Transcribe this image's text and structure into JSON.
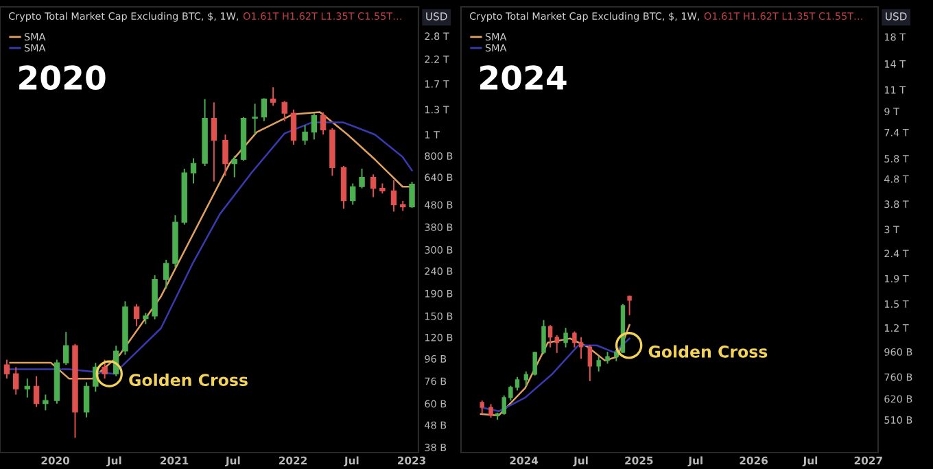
{
  "chart_data": [
    {
      "type": "candlestick",
      "title": "Crypto Total Market Cap Excluding BTC, $, 1W,",
      "subtitle": "O1.61T H1.62T L1.35T C1.55T…",
      "ylabel": "USD",
      "log": true,
      "legend": "top left",
      "annotations": [
        "2020",
        {
          "text": "Golden Cross",
          "x": "2020-06-15",
          "y": 82000000000.0
        }
      ],
      "xlim": [
        "2019-07-15",
        "2023-01-22"
      ],
      "xticks": [
        "2020",
        {
          "value": "2020-07",
          "label": "Jul"
        },
        "2021",
        {
          "value": "2021-07",
          "label": "Jul"
        },
        "2022",
        {
          "value": "2022-07",
          "label": "Jul"
        },
        "2023"
      ],
      "ylim": [
        36000000000.0,
        3800000000000.0
      ],
      "yticks": [
        {
          "value": 2800000000000.0,
          "label": "2.8 T"
        },
        {
          "value": 2200000000000.0,
          "label": "2.2 T"
        },
        {
          "value": 1700000000000.0,
          "label": "1.7 T"
        },
        {
          "value": 1300000000000.0,
          "label": "1.3 T"
        },
        {
          "value": 1000000000000.0,
          "label": "1 T"
        },
        {
          "value": 800000000000.0,
          "label": "800 B"
        },
        {
          "value": 640000000000.0,
          "label": "640 B"
        },
        {
          "value": 480000000000.0,
          "label": "480 B"
        },
        {
          "value": 380000000000.0,
          "label": "380 B"
        },
        {
          "value": 300000000000.0,
          "label": "300 B"
        },
        {
          "value": 240000000000.0,
          "label": "240 B"
        },
        {
          "value": 190000000000.0,
          "label": "190 B"
        },
        {
          "value": 150000000000.0,
          "label": "150 B"
        },
        {
          "value": 120000000000.0,
          "label": "120 B"
        },
        {
          "value": 96000000000.0,
          "label": "96 B"
        },
        {
          "value": 76000000000.0,
          "label": "76 B"
        },
        {
          "value": 60000000000.0,
          "label": "60 B"
        },
        {
          "value": 48000000000.0,
          "label": "48 B"
        },
        {
          "value": 38000000000.0,
          "label": "38 B"
        }
      ],
      "x": [
        "2019-08-05",
        "2019-09-02",
        "2019-10-07",
        "2019-11-04",
        "2019-12-02",
        "2020-01-06",
        "2020-02-03",
        "2020-03-02",
        "2020-04-06",
        "2020-05-04",
        "2020-06-01",
        "2020-07-06",
        "2020-08-03",
        "2020-09-07",
        "2020-10-05",
        "2020-11-02",
        "2020-12-07",
        "2021-01-04",
        "2021-02-01",
        "2021-03-01",
        "2021-04-05",
        "2021-05-03",
        "2021-06-07",
        "2021-07-05",
        "2021-08-02",
        "2021-09-06",
        "2021-10-04",
        "2021-11-01",
        "2021-12-06",
        "2022-01-03",
        "2022-02-07",
        "2022-03-07",
        "2022-04-04",
        "2022-05-02",
        "2022-06-06",
        "2022-07-04",
        "2022-08-01",
        "2022-09-05",
        "2022-10-03",
        "2022-11-07",
        "2022-12-05",
        "2023-01-02"
      ],
      "ohlc": [
        [
          90000000000.0,
          95000000000.0,
          78000000000.0,
          82000000000.0
        ],
        [
          82000000000.0,
          88000000000.0,
          66000000000.0,
          70000000000.0
        ],
        [
          70000000000.0,
          78000000000.0,
          64000000000.0,
          72000000000.0
        ],
        [
          72000000000.0,
          80000000000.0,
          58000000000.0,
          60000000000.0
        ],
        [
          60000000000.0,
          66000000000.0,
          56000000000.0,
          62000000000.0
        ],
        [
          62000000000.0,
          95000000000.0,
          60000000000.0,
          92000000000.0
        ],
        [
          92000000000.0,
          127000000000.0,
          90000000000.0,
          110000000000.0
        ],
        [
          110000000000.0,
          112000000000.0,
          42000000000.0,
          55000000000.0
        ],
        [
          55000000000.0,
          75000000000.0,
          52000000000.0,
          72000000000.0
        ],
        [
          72000000000.0,
          92000000000.0,
          68000000000.0,
          88000000000.0
        ],
        [
          88000000000.0,
          95000000000.0,
          78000000000.0,
          82000000000.0
        ],
        [
          82000000000.0,
          110000000000.0,
          80000000000.0,
          104000000000.0
        ],
        [
          104000000000.0,
          175000000000.0,
          100000000000.0,
          165000000000.0
        ],
        [
          165000000000.0,
          170000000000.0,
          135000000000.0,
          146000000000.0
        ],
        [
          146000000000.0,
          155000000000.0,
          138000000000.0,
          150000000000.0
        ],
        [
          150000000000.0,
          230000000000.0,
          145000000000.0,
          220000000000.0
        ],
        [
          220000000000.0,
          270000000000.0,
          200000000000.0,
          260000000000.0
        ],
        [
          260000000000.0,
          430000000000.0,
          250000000000.0,
          400000000000.0
        ],
        [
          400000000000.0,
          700000000000.0,
          390000000000.0,
          670000000000.0
        ],
        [
          670000000000.0,
          780000000000.0,
          600000000000.0,
          740000000000.0
        ],
        [
          740000000000.0,
          1450000000000.0,
          720000000000.0,
          1185000000000.0
        ],
        [
          1185000000000.0,
          1400000000000.0,
          612000000000.0,
          942000000000.0
        ],
        [
          942000000000.0,
          1000000000000.0,
          650000000000.0,
          738000000000.0
        ],
        [
          738000000000.0,
          800000000000.0,
          640000000000.0,
          771000000000.0
        ],
        [
          771000000000.0,
          1200000000000.0,
          760000000000.0,
          1185000000000.0
        ],
        [
          1185000000000.0,
          1380000000000.0,
          1000000000000.0,
          1200000000000.0
        ],
        [
          1200000000000.0,
          1460000000000.0,
          1150000000000.0,
          1450000000000.0
        ],
        [
          1450000000000.0,
          1640000000000.0,
          1350000000000.0,
          1400000000000.0
        ],
        [
          1400000000000.0,
          1420000000000.0,
          1150000000000.0,
          1250000000000.0
        ],
        [
          1250000000000.0,
          1300000000000.0,
          900000000000.0,
          942000000000.0
        ],
        [
          942000000000.0,
          1100000000000.0,
          900000000000.0,
          1026000000000.0
        ],
        [
          1026000000000.0,
          1250000000000.0,
          950000000000.0,
          1219000000000.0
        ],
        [
          1219000000000.0,
          1260000000000.0,
          1000000000000.0,
          1050000000000.0
        ],
        [
          1050000000000.0,
          1070000000000.0,
          650000000000.0,
          708000000000.0
        ],
        [
          708000000000.0,
          720000000000.0,
          460000000000.0,
          501000000000.0
        ],
        [
          501000000000.0,
          600000000000.0,
          480000000000.0,
          580000000000.0
        ],
        [
          580000000000.0,
          700000000000.0,
          570000000000.0,
          640000000000.0
        ],
        [
          640000000000.0,
          660000000000.0,
          520000000000.0,
          570000000000.0
        ],
        [
          570000000000.0,
          600000000000.0,
          540000000000.0,
          555000000000.0
        ],
        [
          555000000000.0,
          620000000000.0,
          447000000000.0,
          480000000000.0
        ],
        [
          480000000000.0,
          500000000000.0,
          450000000000.0,
          470000000000.0
        ],
        [
          470000000000.0,
          610000000000.0,
          465000000000.0,
          596000000000.0
        ]
      ],
      "series": [
        {
          "type": "line",
          "name": "SMA",
          "color": "#e0a060",
          "x": [
            "2019-08-15",
            "2019-12-19",
            "2020-02-12",
            "2020-04-24",
            "2020-07-17",
            "2020-11-21",
            "2021-04-09",
            "2021-06-20",
            "2021-09-12",
            "2021-12-31",
            "2022-03-25",
            "2022-06-18",
            "2022-09-10",
            "2022-12-04",
            "2023-01-02"
          ],
          "values": [
            92000000000.0,
            92000000000.0,
            78000000000.0,
            78000000000.0,
            100000000000.0,
            184000000000.0,
            460000000000.0,
            738000000000.0,
            1026000000000.0,
            1235000000000.0,
            1265000000000.0,
            1000000000000.0,
            771000000000.0,
            580000000000.0,
            580000000000.0
          ]
        },
        {
          "type": "line",
          "name": "SMA",
          "color": "#3a3ab0",
          "x": [
            "2019-08-15",
            "2020-02-12",
            "2020-06-30",
            "2020-11-21",
            "2021-02-26",
            "2021-05-21",
            "2021-08-26",
            "2021-12-06",
            "2022-02-28",
            "2022-06-05",
            "2022-09-10",
            "2022-12-04",
            "2023-01-02"
          ],
          "values": [
            86000000000.0,
            86000000000.0,
            82000000000.0,
            132000000000.0,
            259000000000.0,
            435000000000.0,
            669000000000.0,
            1012000000000.0,
            1135000000000.0,
            1135000000000.0,
            1000000000000.0,
            792000000000.0,
            687000000000.0
          ]
        }
      ]
    },
    {
      "type": "candlestick",
      "title": "Crypto Total Market Cap Excluding BTC, $, 1W,",
      "subtitle": "O1.61T H1.62T L1.35T C1.55T…",
      "ylabel": "USD",
      "log": true,
      "legend": "top left",
      "annotations": [
        "2024",
        {
          "text": "Golden Cross",
          "x": "2024-11-30",
          "y": 1019000000000.0
        }
      ],
      "xlim": [
        "2023-06-15",
        "2027-02-01"
      ],
      "xticks": [
        "2024",
        {
          "value": "2024-07",
          "label": "Jul"
        },
        "2025",
        {
          "value": "2025-07",
          "label": "Jul"
        },
        "2026",
        {
          "value": "2026-07",
          "label": "Jul"
        },
        "2027"
      ],
      "ylim": [
        376000000000.0,
        23800000000000.0
      ],
      "yticks": [
        {
          "value": 18000000000000.0,
          "label": "18 T"
        },
        {
          "value": 14000000000000.0,
          "label": "14 T"
        },
        {
          "value": 11000000000000.0,
          "label": "11 T"
        },
        {
          "value": 9000000000000.0,
          "label": "9 T"
        },
        {
          "value": 7400000000000.0,
          "label": "7.4 T"
        },
        {
          "value": 5800000000000.0,
          "label": "5.8 T"
        },
        {
          "value": 4800000000000.0,
          "label": "4.8 T"
        },
        {
          "value": 3800000000000.0,
          "label": "3.8 T"
        },
        {
          "value": 3000000000000.0,
          "label": "3 T"
        },
        {
          "value": 2400000000000.0,
          "label": "2.4 T"
        },
        {
          "value": 1900000000000.0,
          "label": "1.9 T"
        },
        {
          "value": 1500000000000.0,
          "label": "1.5 T"
        },
        {
          "value": 1200000000000.0,
          "label": "1.2 T"
        },
        {
          "value": 960000000000.0,
          "label": "960 B"
        },
        {
          "value": 760000000000.0,
          "label": "760 B"
        },
        {
          "value": 620000000000.0,
          "label": "620 B"
        },
        {
          "value": 510000000000.0,
          "label": "510 B"
        }
      ],
      "x": [
        "2023-08-21",
        "2023-09-18",
        "2023-10-09",
        "2023-10-30",
        "2023-11-20",
        "2023-12-11",
        "2024-01-08",
        "2024-02-05",
        "2024-03-04",
        "2024-03-25",
        "2024-04-15",
        "2024-05-13",
        "2024-06-10",
        "2024-07-01",
        "2024-07-29",
        "2024-08-26",
        "2024-09-23",
        "2024-10-21",
        "2024-11-11",
        "2024-12-02"
      ],
      "ohlc": [
        [
          600000000000.0,
          610000000000.0,
          540000000000.0,
          573000000000.0
        ],
        [
          573000000000.0,
          590000000000.0,
          520000000000.0,
          531000000000.0
        ],
        [
          531000000000.0,
          545000000000.0,
          510000000000.0,
          540000000000.0
        ],
        [
          540000000000.0,
          640000000000.0,
          535000000000.0,
          627000000000.0
        ],
        [
          627000000000.0,
          700000000000.0,
          610000000000.0,
          690000000000.0
        ],
        [
          690000000000.0,
          760000000000.0,
          670000000000.0,
          740000000000.0
        ],
        [
          740000000000.0,
          800000000000.0,
          700000000000.0,
          778000000000.0
        ],
        [
          778000000000.0,
          960000000000.0,
          770000000000.0,
          955000000000.0
        ],
        [
          955000000000.0,
          1290000000000.0,
          940000000000.0,
          1217000000000.0
        ],
        [
          1217000000000.0,
          1230000000000.0,
          1000000000000.0,
          1100000000000.0
        ],
        [
          1100000000000.0,
          1120000000000.0,
          950000000000.0,
          1045000000000.0
        ],
        [
          1045000000000.0,
          1200000000000.0,
          1000000000000.0,
          1143000000000.0
        ],
        [
          1143000000000.0,
          1160000000000.0,
          1000000000000.0,
          1045000000000.0
        ],
        [
          1045000000000.0,
          1100000000000.0,
          900000000000.0,
          1005000000000.0
        ],
        [
          1005000000000.0,
          1020000000000.0,
          731000000000.0,
          841000000000.0
        ],
        [
          841000000000.0,
          920000000000.0,
          800000000000.0,
          885000000000.0
        ],
        [
          885000000000.0,
          960000000000.0,
          860000000000.0,
          919000000000.0
        ],
        [
          919000000000.0,
          980000000000.0,
          880000000000.0,
          955000000000.0
        ],
        [
          955000000000.0,
          1500000000000.0,
          950000000000.0,
          1475000000000.0
        ],
        [
          1610000000000.0,
          1620000000000.0,
          1350000000000.0,
          1550000000000.0
        ]
      ],
      "series": [
        {
          "type": "line",
          "name": "SMA",
          "color": "#e0a060",
          "x": [
            "2023-08-17",
            "2023-10-13",
            "2024-01-05",
            "2024-03-17",
            "2024-05-27",
            "2024-07-22",
            "2024-09-15",
            "2024-10-25",
            "2024-12-02"
          ],
          "values": [
            538000000000.0,
            531000000000.0,
            685000000000.0,
            1045000000000.0,
            1087000000000.0,
            1005000000000.0,
            885000000000.0,
            919000000000.0,
            1233000000000.0
          ]
        },
        {
          "type": "line",
          "name": "SMA",
          "color": "#3a3ab0",
          "x": [
            "2023-08-17",
            "2023-10-13",
            "2024-01-05",
            "2024-03-30",
            "2024-06-22",
            "2024-08-20",
            "2024-10-14",
            "2024-12-02"
          ],
          "values": [
            573000000000.0,
            552000000000.0,
            627000000000.0,
            778000000000.0,
            1019000000000.0,
            1019000000000.0,
            955000000000.0,
            1087000000000.0
          ]
        }
      ]
    }
  ]
}
